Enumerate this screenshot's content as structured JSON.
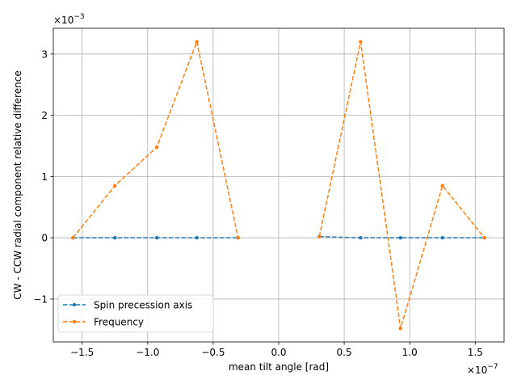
{
  "chart_data": {
    "type": "line",
    "title": "",
    "xlabel": "mean tilt angle [rad]",
    "ylabel": "CW - CCW radial component relative difference",
    "x_scale_label": "×10",
    "x_scale_exp": "−7",
    "y_scale_label": "×10",
    "y_scale_exp": "−3",
    "xlim": [
      -1.72e-07,
      1.72e-07
    ],
    "ylim": [
      -0.0017,
      0.00342
    ],
    "grid": true,
    "legend_position": "lower-left",
    "x_ticks": [
      {
        "value": -1.5e-07,
        "label": "−1.5"
      },
      {
        "value": -1e-07,
        "label": "−1.0"
      },
      {
        "value": -5e-08,
        "label": "−0.5"
      },
      {
        "value": 0.0,
        "label": "0.0"
      },
      {
        "value": 5e-08,
        "label": "0.5"
      },
      {
        "value": 1e-07,
        "label": "1.0"
      },
      {
        "value": 1.5e-07,
        "label": "1.5"
      }
    ],
    "y_ticks": [
      {
        "value": -0.001,
        "label": "−1"
      },
      {
        "value": 0.0,
        "label": "0"
      },
      {
        "value": 0.001,
        "label": "1"
      },
      {
        "value": 0.002,
        "label": "2"
      },
      {
        "value": 0.003,
        "label": "3"
      }
    ],
    "series": [
      {
        "name": "Spin precession axis",
        "color": "#1f77b4",
        "segments": [
          {
            "x": [
              -1.57e-07,
              -1.25e-07,
              -9.3e-08,
              -6.25e-08,
              -3.1e-08
            ],
            "y": [
              0.0,
              0.0,
              0.0,
              0.0,
              0.0
            ]
          },
          {
            "x": [
              3.1e-08,
              6.25e-08,
              9.3e-08,
              1.25e-07,
              1.57e-07
            ],
            "y": [
              2e-05,
              0.0,
              0.0,
              0.0,
              0.0
            ]
          }
        ]
      },
      {
        "name": "Frequency",
        "color": "#ff7f0e",
        "segments": [
          {
            "x": [
              -1.57e-07,
              -1.25e-07,
              -9.3e-08,
              -6.25e-08,
              -3.1e-08
            ],
            "y": [
              0.0,
              0.00085,
              0.00148,
              0.0032,
              0.0
            ]
          },
          {
            "x": [
              3.1e-08,
              6.25e-08,
              9.3e-08,
              1.25e-07,
              1.57e-07
            ],
            "y": [
              2e-05,
              0.0032,
              -0.00148,
              0.00085,
              0.0
            ]
          }
        ]
      }
    ]
  }
}
